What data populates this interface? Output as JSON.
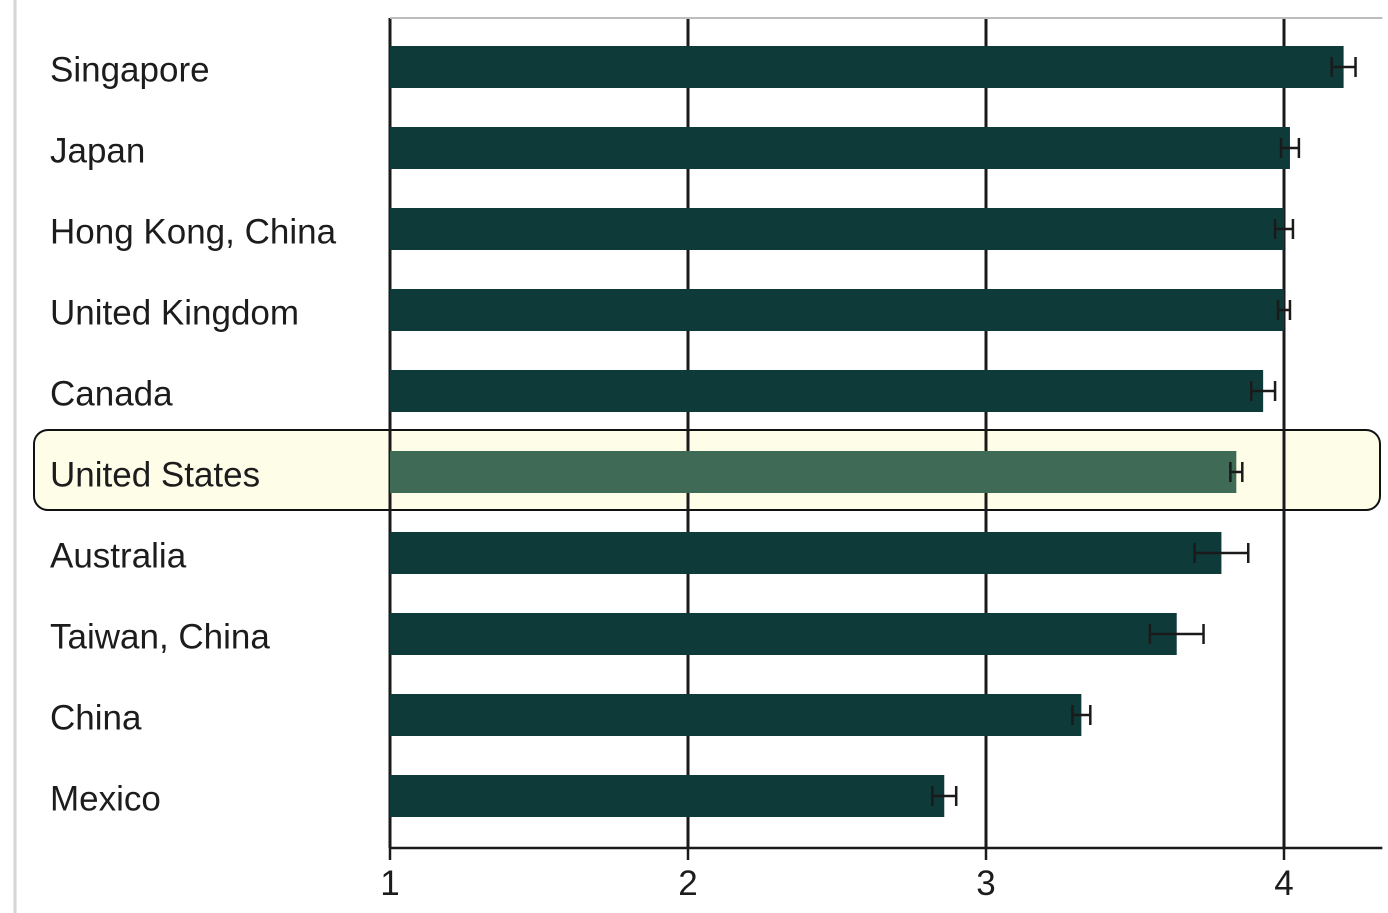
{
  "colors": {
    "bar": "#0e3b3a",
    "highlight_bar": "#3f6a55",
    "highlight_band": "#fdfde8",
    "gridline": "#1a1a1a",
    "error_bar": "#1a1a1a"
  },
  "chart_data": {
    "type": "bar",
    "orientation": "horizontal",
    "categories": [
      "Singapore",
      "Japan",
      "Hong Kong, China",
      "United Kingdom",
      "Canada",
      "United States",
      "Australia",
      "Taiwan, China",
      "China",
      "Mexico"
    ],
    "values": [
      4.2,
      4.02,
      4.0,
      4.0,
      3.93,
      3.84,
      3.79,
      3.64,
      3.32,
      2.86
    ],
    "error": [
      0.04,
      0.03,
      0.03,
      0.02,
      0.04,
      0.02,
      0.09,
      0.09,
      0.03,
      0.04
    ],
    "highlight": "United States",
    "xlim": [
      1,
      4.33
    ],
    "xticks": [
      "1",
      "2",
      "3",
      "4"
    ],
    "grid": true,
    "title": "",
    "xlabel": "",
    "ylabel": ""
  }
}
